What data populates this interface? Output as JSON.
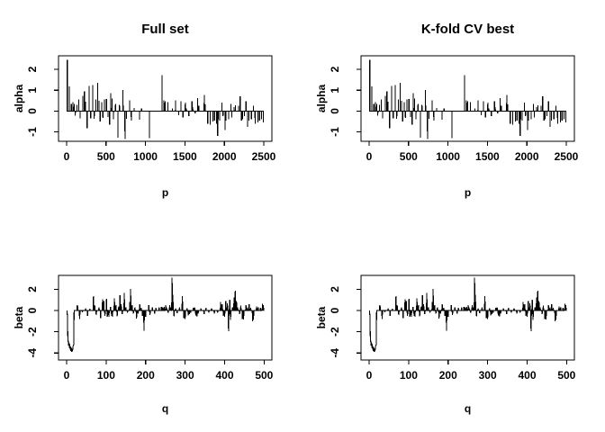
{
  "figure": {
    "background": "#ffffff",
    "line_color": "#000000",
    "text_color": "#000000"
  },
  "series": {
    "alpha_spikes": [
      [
        8,
        2.45
      ],
      [
        35,
        1.18
      ],
      [
        60,
        0.35
      ],
      [
        80,
        0.42
      ],
      [
        95,
        0.35
      ],
      [
        110,
        -0.22
      ],
      [
        130,
        0.3
      ],
      [
        155,
        0.55
      ],
      [
        170,
        -0.35
      ],
      [
        205,
        0.72
      ],
      [
        225,
        0.95
      ],
      [
        240,
        0.45
      ],
      [
        260,
        -0.82
      ],
      [
        285,
        1.2
      ],
      [
        305,
        -0.35
      ],
      [
        330,
        1.25
      ],
      [
        350,
        -0.38
      ],
      [
        370,
        0.55
      ],
      [
        395,
        1.35
      ],
      [
        410,
        0.5
      ],
      [
        425,
        -0.5
      ],
      [
        445,
        0.42
      ],
      [
        460,
        -0.32
      ],
      [
        480,
        0.55
      ],
      [
        505,
        0.58
      ],
      [
        525,
        -0.28
      ],
      [
        545,
        -0.65
      ],
      [
        560,
        0.85
      ],
      [
        575,
        0.6
      ],
      [
        595,
        -0.4
      ],
      [
        620,
        0.35
      ],
      [
        650,
        -1.28
      ],
      [
        670,
        0.3
      ],
      [
        715,
        1.0
      ],
      [
        740,
        -1.35
      ],
      [
        760,
        -0.38
      ],
      [
        800,
        0.52
      ],
      [
        820,
        -0.45
      ],
      [
        855,
        0.15
      ],
      [
        925,
        -0.42
      ],
      [
        950,
        0.12
      ],
      [
        1050,
        -1.3
      ],
      [
        1210,
        1.72
      ],
      [
        1235,
        0.52
      ],
      [
        1250,
        0.48
      ],
      [
        1285,
        0.43
      ],
      [
        1340,
        0.12
      ],
      [
        1380,
        0.52
      ],
      [
        1420,
        -0.2
      ],
      [
        1450,
        0.48
      ],
      [
        1475,
        -0.3
      ],
      [
        1505,
        0.4
      ],
      [
        1520,
        0.12
      ],
      [
        1550,
        -0.25
      ],
      [
        1590,
        0.48
      ],
      [
        1600,
        0.2
      ],
      [
        1630,
        -0.12
      ],
      [
        1660,
        0.62
      ],
      [
        1675,
        0.26
      ],
      [
        1745,
        0.77
      ],
      [
        1755,
        0.33
      ],
      [
        1790,
        -0.6
      ],
      [
        1820,
        -0.65
      ],
      [
        1855,
        -0.5
      ],
      [
        1875,
        -0.45
      ],
      [
        1900,
        -0.6
      ],
      [
        1915,
        -1.2
      ],
      [
        1925,
        -0.4
      ],
      [
        1940,
        -0.45
      ],
      [
        1970,
        0.4
      ],
      [
        1983,
        -0.25
      ],
      [
        2010,
        -0.9
      ],
      [
        2020,
        -0.45
      ],
      [
        2055,
        -0.4
      ],
      [
        2085,
        0.35
      ],
      [
        2096,
        -0.3
      ],
      [
        2125,
        0.2
      ],
      [
        2142,
        0.27
      ],
      [
        2180,
        0.26
      ],
      [
        2200,
        0.7
      ],
      [
        2218,
        -0.45
      ],
      [
        2230,
        -0.4
      ],
      [
        2256,
        -0.25
      ],
      [
        2275,
        0.48
      ],
      [
        2295,
        -0.75
      ],
      [
        2313,
        -0.45
      ],
      [
        2343,
        -0.4
      ],
      [
        2370,
        0.26
      ],
      [
        2390,
        -0.6
      ],
      [
        2427,
        -0.55
      ],
      [
        2446,
        -0.45
      ],
      [
        2473,
        -0.4
      ],
      [
        2495,
        -0.55
      ]
    ],
    "beta_spikes": [
      [
        2,
        -0.5
      ],
      [
        3,
        -2.4
      ],
      [
        4,
        -2.9
      ],
      [
        5,
        -3.3
      ],
      [
        6,
        -3.0
      ],
      [
        7,
        -3.5
      ],
      [
        8,
        -3.2
      ],
      [
        9,
        -3.7
      ],
      [
        10,
        -3.4
      ],
      [
        11,
        -3.8
      ],
      [
        12,
        -3.5
      ],
      [
        13,
        -3.9
      ],
      [
        14,
        -3.6
      ],
      [
        15,
        -3.8
      ],
      [
        16,
        -3.4
      ],
      [
        17,
        -3.3
      ],
      [
        18,
        -3.2
      ],
      [
        27,
        0.5
      ],
      [
        28,
        0.35
      ],
      [
        33,
        -0.8
      ],
      [
        40,
        -0.15
      ],
      [
        48,
        0.2
      ],
      [
        53,
        -0.5
      ],
      [
        59,
        0.15
      ],
      [
        68,
        1.35
      ],
      [
        71,
        0.5
      ],
      [
        75,
        -0.4
      ],
      [
        82,
        0.3
      ],
      [
        86,
        -0.7
      ],
      [
        91,
        1.05
      ],
      [
        94,
        0.9
      ],
      [
        97,
        -0.5
      ],
      [
        101,
        1.1
      ],
      [
        103,
        -0.6
      ],
      [
        107,
        -0.6
      ],
      [
        111,
        0.35
      ],
      [
        114,
        -0.5
      ],
      [
        116,
        -0.6
      ],
      [
        121,
        1.15
      ],
      [
        125,
        0.5
      ],
      [
        128,
        -0.55
      ],
      [
        132,
        0.4
      ],
      [
        135,
        1.45
      ],
      [
        138,
        0.6
      ],
      [
        141,
        -0.35
      ],
      [
        146,
        1.65
      ],
      [
        150,
        0.3
      ],
      [
        154,
        -0.2
      ],
      [
        160,
        0.8
      ],
      [
        162,
        2.05
      ],
      [
        166,
        0.5
      ],
      [
        169,
        -0.3
      ],
      [
        173,
        0.3
      ],
      [
        177,
        -0.75
      ],
      [
        181,
        -0.3
      ],
      [
        185,
        0.6
      ],
      [
        189,
        0.25
      ],
      [
        192,
        -0.5
      ],
      [
        196,
        -1.9
      ],
      [
        200,
        -0.6
      ],
      [
        208,
        0.5
      ],
      [
        211,
        -0.4
      ],
      [
        217,
        0.3
      ],
      [
        223,
        -0.3
      ],
      [
        226,
        0.25
      ],
      [
        234,
        0.3
      ],
      [
        240,
        0.35
      ],
      [
        243,
        0.3
      ],
      [
        247,
        0.35
      ],
      [
        251,
        0.5
      ],
      [
        253,
        0.3
      ],
      [
        257,
        -0.2
      ],
      [
        261,
        0.5
      ],
      [
        263,
        0.3
      ],
      [
        267,
        3.1
      ],
      [
        269,
        1.5
      ],
      [
        272,
        -0.55
      ],
      [
        276,
        0.2
      ],
      [
        280,
        -0.25
      ],
      [
        286,
        0.3
      ],
      [
        293,
        1.35
      ],
      [
        297,
        -0.7
      ],
      [
        300,
        -0.8
      ],
      [
        305,
        0.2
      ],
      [
        308,
        -0.45
      ],
      [
        311,
        -0.35
      ],
      [
        314,
        -0.2
      ],
      [
        321,
        0.25
      ],
      [
        324,
        0.3
      ],
      [
        327,
        -0.45
      ],
      [
        330,
        -0.55
      ],
      [
        333,
        -0.3
      ],
      [
        340,
        0.2
      ],
      [
        348,
        -0.35
      ],
      [
        353,
        0.25
      ],
      [
        360,
        -0.2
      ],
      [
        367,
        0.2
      ],
      [
        374,
        -0.3
      ],
      [
        382,
        -0.2
      ],
      [
        390,
        0.8
      ],
      [
        394,
        0.6
      ],
      [
        397,
        -0.5
      ],
      [
        400,
        -0.6
      ],
      [
        403,
        0.9
      ],
      [
        407,
        0.7
      ],
      [
        410,
        -1.95
      ],
      [
        413,
        1.0
      ],
      [
        415,
        -0.9
      ],
      [
        420,
        0.3
      ],
      [
        424,
        1.25
      ],
      [
        427,
        1.85
      ],
      [
        430,
        0.9
      ],
      [
        433,
        0.3
      ],
      [
        438,
        -0.35
      ],
      [
        441,
        0.45
      ],
      [
        445,
        -0.8
      ],
      [
        448,
        -0.85
      ],
      [
        454,
        0.5
      ],
      [
        458,
        0.3
      ],
      [
        462,
        0.6
      ],
      [
        466,
        0.25
      ],
      [
        471,
        -1.0
      ],
      [
        473,
        -0.9
      ],
      [
        481,
        0.4
      ],
      [
        485,
        0.3
      ],
      [
        491,
        0.25
      ],
      [
        496,
        0.65
      ],
      [
        498,
        0.5
      ]
    ]
  },
  "chart_data": [
    {
      "id": "top-left",
      "type": "line",
      "row": "top",
      "title": "Full set",
      "xlabel": "p",
      "ylabel": "alpha",
      "n": 2500,
      "spikes_ref": "alpha_spikes",
      "baseline": 0,
      "xlim": [
        -103,
        2603
      ],
      "ylim": [
        -1.45,
        2.65
      ],
      "xticks": [
        0,
        500,
        1000,
        1500,
        2000,
        2500
      ],
      "yticks": [
        -1,
        0,
        1,
        2
      ],
      "grid": false,
      "legend": "none"
    },
    {
      "id": "top-right",
      "type": "line",
      "row": "top",
      "title": "K-fold CV best",
      "xlabel": "p",
      "ylabel": "alpha",
      "n": 2500,
      "spikes_ref": "alpha_spikes",
      "baseline": 0,
      "xlim": [
        -103,
        2603
      ],
      "ylim": [
        -1.45,
        2.65
      ],
      "xticks": [
        0,
        500,
        1000,
        1500,
        2000,
        2500
      ],
      "yticks": [
        -1,
        0,
        1,
        2
      ],
      "grid": false,
      "legend": "none"
    },
    {
      "id": "bottom-left",
      "type": "line",
      "row": "bottom",
      "title": "",
      "xlabel": "q",
      "ylabel": "beta",
      "n": 500,
      "spikes_ref": "beta_spikes",
      "baseline": 0,
      "xlim": [
        -20.5,
        519.7
      ],
      "ylim": [
        -4.66,
        3.31
      ],
      "xticks": [
        0,
        100,
        200,
        300,
        400,
        500
      ],
      "yticks": [
        -4,
        -2,
        0,
        2
      ],
      "grid": false,
      "legend": "none"
    },
    {
      "id": "bottom-right",
      "type": "line",
      "row": "bottom",
      "title": "",
      "xlabel": "q",
      "ylabel": "beta",
      "n": 500,
      "spikes_ref": "beta_spikes",
      "baseline": 0,
      "xlim": [
        -20.5,
        519.7
      ],
      "ylim": [
        -4.66,
        3.31
      ],
      "xticks": [
        0,
        100,
        200,
        300,
        400,
        500
      ],
      "yticks": [
        -4,
        -2,
        0,
        2
      ],
      "grid": false,
      "legend": "none"
    }
  ]
}
